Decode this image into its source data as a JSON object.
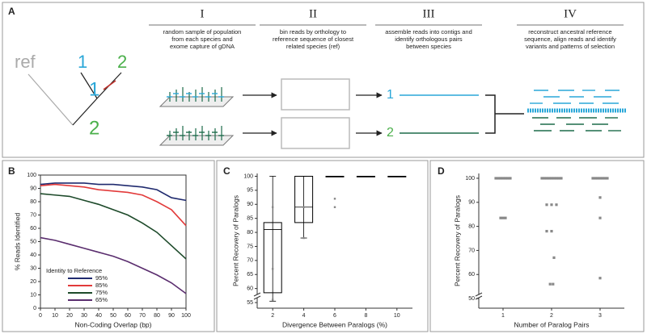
{
  "diagram": {
    "label": "A",
    "ref": "ref",
    "taxa": [
      "1",
      "2"
    ],
    "steps": [
      {
        "numeral": "I",
        "lines": [
          "random sample of population",
          "from each species and",
          "exome capture of gDNA"
        ]
      },
      {
        "numeral": "II",
        "lines": [
          "bin reads by orthology to",
          "reference sequence of closest",
          "related species (ref)"
        ]
      },
      {
        "numeral": "III",
        "lines": [
          "assemble reads into contigs and",
          "identify orthologous pairs",
          "between species"
        ]
      },
      {
        "numeral": "IV",
        "lines": [
          "reconstruct ancestral reference",
          "sequence, align reads and identify",
          "variants and patterns of selection"
        ]
      }
    ]
  },
  "chart_data": [
    {
      "label": "B",
      "type": "line",
      "xlabel": "Non-Coding Overlap (bp)",
      "ylabel": "% Reads Identified",
      "x": [
        0,
        10,
        20,
        30,
        40,
        50,
        60,
        70,
        80,
        90,
        100
      ],
      "series": [
        {
          "name": "95%",
          "color": "#1f2a6e",
          "values": [
            93,
            94,
            94,
            94,
            93,
            93,
            92,
            91,
            89,
            83,
            81
          ]
        },
        {
          "name": "85%",
          "color": "#e23a3a",
          "values": [
            92,
            93,
            92,
            91,
            89,
            88,
            87,
            85,
            80,
            74,
            62
          ]
        },
        {
          "name": "75%",
          "color": "#1d4a2a",
          "values": [
            86,
            85,
            84,
            81,
            78,
            74,
            70,
            64,
            57,
            47,
            37
          ]
        },
        {
          "name": "65%",
          "color": "#5a2d6e",
          "values": [
            53,
            51,
            48,
            45,
            42,
            39,
            35,
            30,
            25,
            19,
            11
          ]
        }
      ],
      "xlim": [
        0,
        100
      ],
      "ylim": [
        0,
        100
      ],
      "xticks": [
        0,
        10,
        20,
        30,
        40,
        50,
        60,
        70,
        80,
        90,
        100
      ],
      "yticks": [
        0,
        10,
        20,
        30,
        40,
        50,
        60,
        70,
        80,
        90,
        100
      ],
      "legend_title": "Identity to Reference",
      "legend": "lower left"
    },
    {
      "label": "C",
      "type": "box",
      "xlabel": "Divergence Between Paralogs (%)",
      "ylabel": "Percent Recovery of Paralogs",
      "x": [
        2,
        4,
        6,
        8,
        10
      ],
      "low": [
        55.5,
        78,
        100,
        100,
        100
      ],
      "q1": [
        58.5,
        83.5,
        100,
        100,
        100
      ],
      "median": [
        81,
        89,
        100,
        100,
        100
      ],
      "q3": [
        83.5,
        100,
        100,
        100,
        100
      ],
      "high": [
        100,
        100,
        100,
        100,
        100
      ],
      "points_x": [
        2,
        2,
        2,
        4,
        4,
        6,
        6
      ],
      "points_y": [
        89,
        67,
        56,
        89,
        78,
        92,
        89
      ],
      "xlim": [
        1,
        11
      ],
      "ylim": [
        53,
        101
      ],
      "xticks": [
        2,
        4,
        6,
        8,
        10
      ],
      "yticks": [
        55,
        60,
        65,
        70,
        75,
        80,
        85,
        90,
        95,
        100
      ],
      "color": "#000000",
      "point_color": "#888888"
    },
    {
      "label": "D",
      "type": "scatter",
      "xlabel": "Number of Paralog Pairs",
      "ylabel": "Percent Recovery of Paralogs",
      "x": [
        0.85,
        0.9,
        0.95,
        1,
        1.05,
        1.1,
        1.15,
        1.8,
        1.85,
        1.9,
        1.95,
        2,
        2.05,
        2.1,
        2.15,
        2.2,
        2.85,
        2.9,
        2.95,
        3,
        3.05,
        3.1,
        3.15,
        0.95,
        1,
        1.05,
        1.9,
        2,
        2.1,
        1.9,
        2,
        2.05,
        1.97,
        2.03,
        3,
        3,
        3
      ],
      "values": [
        100,
        100,
        100,
        100,
        100,
        100,
        100,
        100,
        100,
        100,
        100,
        100,
        100,
        100,
        100,
        100,
        100,
        100,
        100,
        100,
        100,
        100,
        100,
        83.5,
        83.5,
        83.5,
        89,
        89,
        89,
        78,
        78,
        67,
        56,
        56,
        92,
        83.5,
        58.5
      ],
      "xlim": [
        0.5,
        3.5
      ],
      "ylim": [
        46,
        102
      ],
      "xticks": [
        1,
        2,
        3
      ],
      "yticks": [
        50,
        60,
        70,
        80,
        90,
        100
      ],
      "color": "#888888"
    }
  ]
}
